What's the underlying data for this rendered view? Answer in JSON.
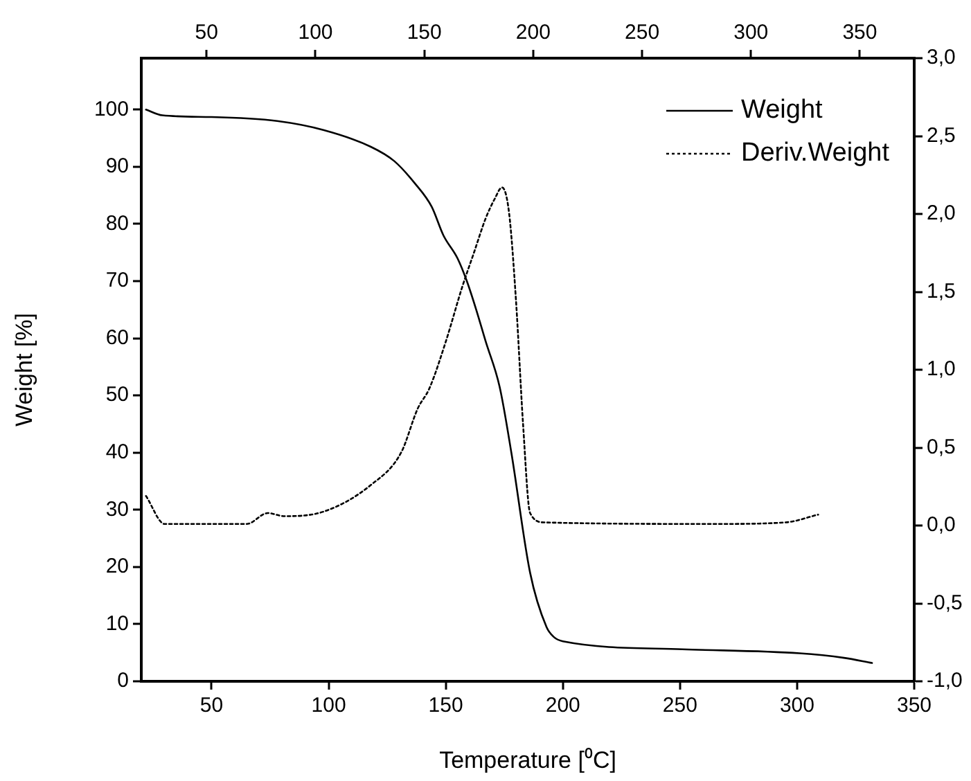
{
  "chart_data": {
    "type": "line",
    "xlabel": "Temperature [⁰C]",
    "ylabel": "Weight [%]",
    "xlim": [
      20,
      350
    ],
    "xticks": [
      50,
      100,
      150,
      200,
      250,
      300,
      350
    ],
    "x2lim": [
      20,
      375
    ],
    "x2ticks": [
      50,
      100,
      150,
      200,
      250,
      300,
      350
    ],
    "ylim": [
      0,
      109
    ],
    "yticks": [
      0,
      10,
      20,
      30,
      40,
      50,
      60,
      70,
      80,
      90,
      100
    ],
    "y2lim": [
      -1,
      3
    ],
    "y2ticks": [
      {
        "value": -1,
        "label": "-1,0"
      },
      {
        "value": -0.5,
        "label": "-0,5"
      },
      {
        "value": 0,
        "label": "0,0"
      },
      {
        "value": 0.5,
        "label": "0,5"
      },
      {
        "value": 1,
        "label": "1,0"
      },
      {
        "value": 1.5,
        "label": "1,5"
      },
      {
        "value": 2,
        "label": "2,0"
      },
      {
        "value": 2.5,
        "label": "2,5"
      },
      {
        "value": 3,
        "label": "3,0"
      }
    ],
    "legend": "top right",
    "grid": false,
    "series": [
      {
        "name": "Weight",
        "color": "#000000",
        "line_style": "solid",
        "x": [
          22,
          29,
          50,
          78,
          98,
          118,
          128,
          137,
          144,
          149,
          155,
          159,
          163,
          167,
          173,
          178,
          186,
          193,
          196,
          200,
          251,
          301,
          320,
          332
        ],
        "values": [
          100,
          99,
          98.7,
          98,
          96.4,
          93.5,
          91,
          87,
          83,
          78,
          74,
          70,
          65,
          59.5,
          51.5,
          40,
          19,
          9.5,
          7.8,
          7,
          5.6,
          4.9,
          4.1,
          3.2
        ]
      },
      {
        "name": "Deriv.Weight",
        "color": "#000000",
        "line_style": "dotted",
        "axis": "y2",
        "x": [
          22,
          30,
          49,
          65,
          74,
          81,
          98,
          118,
          131,
          138,
          143,
          150,
          157,
          162,
          167,
          171,
          174,
          177,
          180,
          183,
          186,
          192,
          265,
          295,
          309
        ],
        "values": [
          0.19,
          0.01,
          0.01,
          0.01,
          0.08,
          0.06,
          0.09,
          0.26,
          0.47,
          0.75,
          0.88,
          1.18,
          1.53,
          1.75,
          1.97,
          2.1,
          2.17,
          2.01,
          1.44,
          0.65,
          0.08,
          0.02,
          0.01,
          0.02,
          0.07
        ]
      }
    ]
  }
}
